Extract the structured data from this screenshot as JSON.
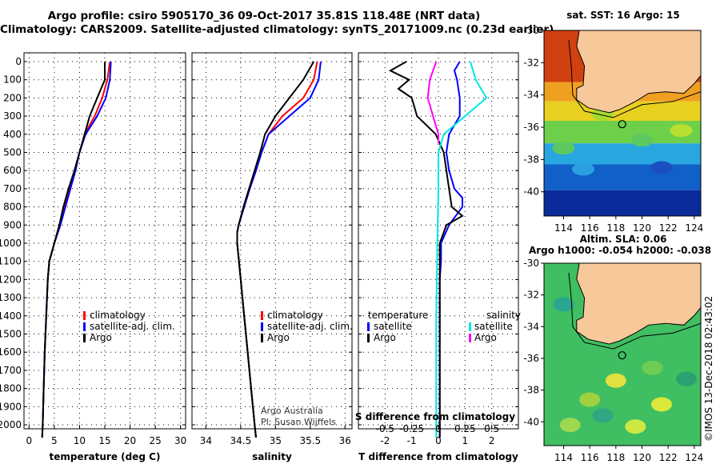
{
  "header": {
    "line1": "Argo profile: csiro 5905170_36 09-Oct-2017 35.81S 118.48E (NRT data)",
    "line2": "Climatology: CARS2009. Satellite-adjusted climatology: synTS_20171009.nc (0.23d earlier)"
  },
  "colors": {
    "climatology": "#ff0000",
    "satellite": "#0000ff",
    "argo": "#000000",
    "sat_salinity": "#00e5e5",
    "argo_salinity": "#ff00ff",
    "land": "#f7c89a"
  },
  "credits": {
    "source": "Argo Australia",
    "pi": "PI: Susan Wijffels",
    "stamp": "©IMOS 13-Dec-2018 02:43:02"
  },
  "depth_ticks": [
    "0",
    "100",
    "200",
    "300",
    "400",
    "500",
    "600",
    "700",
    "800",
    "900",
    "1000",
    "1100",
    "1200",
    "1300",
    "1400",
    "1500",
    "1600",
    "1700",
    "1800",
    "1900",
    "2000"
  ],
  "chart_data": [
    {
      "type": "line",
      "panel": "temperature",
      "xlabel": "temperature (deg C)",
      "xlim": [
        -1,
        31
      ],
      "ylim": [
        2080,
        0
      ],
      "xticks": [
        "0",
        "5",
        "10",
        "15",
        "20",
        "25",
        "30"
      ],
      "legend": [
        "climatology",
        "satellite-adj. clim.",
        "Argo"
      ],
      "series": [
        {
          "name": "climatology",
          "depth": [
            0,
            100,
            200,
            300,
            400,
            500,
            600,
            700,
            800,
            900,
            1000,
            1100,
            1200,
            1400,
            1600,
            1800,
            2000,
            2070
          ],
          "values": [
            16,
            15.5,
            14.5,
            13,
            11,
            10,
            9,
            8,
            7,
            6,
            5,
            4,
            3.7,
            3.4,
            3.1,
            2.9,
            2.7,
            2.6
          ]
        },
        {
          "name": "satellite-adj. clim.",
          "depth": [
            0,
            100,
            200,
            300,
            400,
            500,
            600,
            700,
            800,
            900,
            1000,
            1100,
            1200,
            1400,
            1600,
            1800,
            2000,
            2070
          ],
          "values": [
            16.2,
            16,
            15.2,
            13.5,
            11.2,
            10,
            9.2,
            8.2,
            7.2,
            6.2,
            5,
            4,
            3.7,
            3.4,
            3.1,
            2.9,
            2.7,
            2.6
          ]
        },
        {
          "name": "Argo",
          "depth": [
            0,
            100,
            200,
            300,
            400,
            500,
            600,
            700,
            800,
            900,
            1000,
            1100,
            1200,
            1400,
            1600,
            1800,
            2000,
            2070
          ],
          "values": [
            15,
            15,
            13.5,
            12,
            11,
            10,
            9,
            7.8,
            6.8,
            6,
            5,
            4,
            3.7,
            3.4,
            3.1,
            2.9,
            2.7,
            2.6
          ]
        }
      ]
    },
    {
      "type": "line",
      "panel": "salinity",
      "xlabel": "salinity",
      "xlim": [
        33.8,
        36.1
      ],
      "ylim": [
        2080,
        0
      ],
      "xticks": [
        "34",
        "34.5",
        "35",
        "35.5",
        "36"
      ],
      "legend": [
        "climatology",
        "satellite-adj. clim.",
        "Argo"
      ],
      "series": [
        {
          "name": "climatology",
          "depth": [
            0,
            100,
            200,
            300,
            400,
            500,
            600,
            700,
            800,
            900,
            940,
            1000,
            1200,
            1400,
            1600,
            1800,
            2000,
            2070
          ],
          "values": [
            35.6,
            35.55,
            35.4,
            35.1,
            34.9,
            34.8,
            34.72,
            34.63,
            34.55,
            34.47,
            34.45,
            34.45,
            34.5,
            34.55,
            34.6,
            34.65,
            34.7,
            34.72
          ]
        },
        {
          "name": "satellite-adj. clim.",
          "depth": [
            0,
            100,
            200,
            300,
            400,
            500,
            600,
            700,
            800,
            900,
            940,
            1000,
            1200,
            1400,
            1600,
            1800,
            2000,
            2070
          ],
          "values": [
            35.65,
            35.62,
            35.5,
            35.2,
            34.9,
            34.8,
            34.72,
            34.63,
            34.55,
            34.47,
            34.45,
            34.45,
            34.5,
            34.55,
            34.6,
            34.65,
            34.7,
            34.72
          ]
        },
        {
          "name": "Argo",
          "depth": [
            0,
            100,
            200,
            300,
            400,
            500,
            600,
            700,
            800,
            900,
            940,
            1000,
            1200,
            1400,
            1600,
            1800,
            2000,
            2070
          ],
          "values": [
            35.55,
            35.4,
            35.2,
            35,
            34.85,
            34.78,
            34.7,
            34.62,
            34.54,
            34.47,
            34.45,
            34.45,
            34.5,
            34.55,
            34.6,
            34.65,
            34.7,
            34.72
          ]
        }
      ]
    },
    {
      "type": "line",
      "panel": "difference",
      "xlabel": "T difference from climatology",
      "xlabel2": "S difference from climatology",
      "xlim": [
        -3,
        3
      ],
      "ylim": [
        2080,
        0
      ],
      "xticks": [
        "-2",
        "-1",
        "0",
        "1",
        "2"
      ],
      "xticks2": [
        "-0.5",
        "-0.25",
        "0",
        "0.25",
        "0.5"
      ],
      "legend_left_title": "temperature",
      "legend_right_title": "salinity",
      "legend_left": [
        "satellite",
        "Argo"
      ],
      "legend_right": [
        "satellite",
        "Argo"
      ],
      "series": [
        {
          "name": "temperature satellite",
          "depth": [
            0,
            50,
            100,
            200,
            300,
            400,
            500,
            600,
            700,
            750,
            800,
            900,
            1000,
            1100,
            1200,
            1600,
            2000,
            2070
          ],
          "values": [
            0.8,
            0.6,
            0.7,
            0.8,
            0.8,
            0.4,
            0.3,
            0.4,
            0.6,
            0.9,
            0.9,
            0.4,
            0.1,
            0.1,
            0.05,
            0.05,
            0.05,
            0.05
          ]
        },
        {
          "name": "temperature Argo",
          "depth": [
            0,
            50,
            100,
            150,
            200,
            300,
            400,
            500,
            600,
            700,
            800,
            850,
            900,
            1000,
            1200,
            1600,
            2000,
            2070
          ],
          "values": [
            -1.2,
            -1.8,
            -1.1,
            -1.5,
            -1.0,
            -0.8,
            -0.1,
            0.2,
            0.3,
            0.4,
            0.5,
            0.9,
            0.3,
            0.05,
            0.05,
            0.05,
            0.05,
            0.05
          ]
        },
        {
          "name": "salinity satellite",
          "depth": [
            0,
            100,
            200,
            300,
            400,
            500,
            700,
            1000,
            1400,
            2000,
            2070
          ],
          "values": [
            0.3,
            0.35,
            0.45,
            0.25,
            0.05,
            0.0,
            0.0,
            -0.01,
            -0.02,
            -0.02,
            -0.02
          ]
        },
        {
          "name": "salinity Argo",
          "depth": [
            0,
            50,
            100,
            200,
            300,
            400,
            450
          ],
          "values": [
            -0.02,
            -0.05,
            -0.08,
            -0.1,
            -0.05,
            0.0,
            0.0
          ]
        }
      ]
    },
    {
      "type": "heatmap",
      "panel": "map-sst",
      "title": "sat. SST: 16 Argo: 15",
      "xlim": [
        112.5,
        124.5
      ],
      "ylim": [
        -41.5,
        -30
      ],
      "xticks": [
        "114",
        "116",
        "118",
        "120",
        "122",
        "124"
      ],
      "yticks": [
        "-30",
        "-32",
        "-34",
        "-36",
        "-38",
        "-40"
      ],
      "float_position": {
        "lon": 118.48,
        "lat": -35.81
      }
    },
    {
      "type": "heatmap",
      "panel": "map-sla",
      "title": "Altim. SLA: 0.06",
      "subtitle": "Argo h1000: -0.054 h2000: -0.038",
      "xlim": [
        112.5,
        124.5
      ],
      "ylim": [
        -41.5,
        -30
      ],
      "xticks": [
        "114",
        "116",
        "118",
        "120",
        "122",
        "124"
      ],
      "yticks": [
        "-30",
        "-32",
        "-34",
        "-36",
        "-38",
        "-40"
      ],
      "float_position": {
        "lon": 118.48,
        "lat": -35.81
      }
    }
  ]
}
